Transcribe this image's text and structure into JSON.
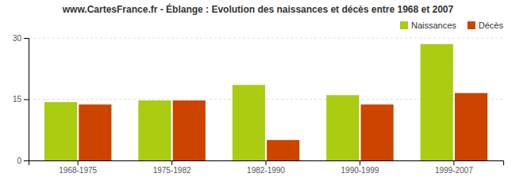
{
  "chart_data": {
    "type": "bar",
    "title": "www.CartesFrance.fr - Éblange : Evolution des naissances et décès entre 1968 et 2007",
    "categories": [
      "1968-1975",
      "1975-1982",
      "1982-1990",
      "1990-1999",
      "1999-2007"
    ],
    "series": [
      {
        "name": "Naissances",
        "color": "#aacc11",
        "values": [
          14.3,
          14.7,
          18.5,
          16.0,
          28.5
        ]
      },
      {
        "name": "Décès",
        "color": "#cc4400",
        "values": [
          13.7,
          14.7,
          5.0,
          13.7,
          16.5
        ]
      }
    ],
    "ylim": [
      0,
      30
    ],
    "yticks": [
      0,
      15,
      30
    ],
    "grid": true,
    "legend": "upper right"
  }
}
